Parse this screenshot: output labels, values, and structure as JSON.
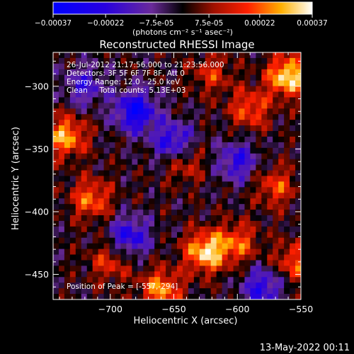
{
  "colorbar": {
    "ticks": [
      "-0.00037",
      "-0.00022",
      "-7.5e-05",
      "7.5e-05",
      "0.00022",
      "0.00037"
    ],
    "units": "(photons cm⁻² s⁻¹ asec⁻²)",
    "range": [
      -0.00037,
      0.00037
    ]
  },
  "chart_data": {
    "type": "heatmap",
    "title": "Reconstructed RHESSI Image",
    "xlabel": "Heliocentric X (arcsec)",
    "ylabel": "Heliocentric Y (arcsec)",
    "xlim": [
      -745,
      -550
    ],
    "ylim": [
      -470,
      -273
    ],
    "x_ticks": [
      -700,
      -650,
      -600,
      -550
    ],
    "x_tick_labels": [
      "−700",
      "−650",
      "−600",
      "−550"
    ],
    "y_ticks": [
      -300,
      -350,
      -400,
      -450
    ],
    "y_tick_labels": [
      "−300",
      "−350",
      "−400",
      "−450"
    ],
    "annotations": [
      "26-Jul-2012 21:17:56.000 to 21:23:56.000",
      "Detectors: 3F 5F 6F 7F 8F, Att 0",
      "Energy Range: 12.0 - 25.0 keV",
      "Clean     Total counts: 5.13E+03"
    ],
    "peak_label": "Position of Peak = [-557,-294]",
    "peak": [
      -557,
      -294
    ],
    "hotspots": [
      {
        "x": -560,
        "y": -292,
        "v": 0.95
      },
      {
        "x": -590,
        "y": -318,
        "v": 0.55
      },
      {
        "x": -735,
        "y": -340,
        "v": 0.75
      },
      {
        "x": -715,
        "y": -390,
        "v": 0.6
      },
      {
        "x": -625,
        "y": -432,
        "v": 0.9
      },
      {
        "x": -600,
        "y": -425,
        "v": 0.55
      },
      {
        "x": -660,
        "y": -462,
        "v": 0.7
      },
      {
        "x": -642,
        "y": -360,
        "v": 0.45
      },
      {
        "x": -570,
        "y": -380,
        "v": 0.5
      },
      {
        "x": -555,
        "y": -440,
        "v": 0.55
      },
      {
        "x": -700,
        "y": -440,
        "v": 0.45
      },
      {
        "x": -620,
        "y": -290,
        "v": 0.4
      }
    ],
    "coldspots": [
      {
        "x": -680,
        "y": -320,
        "v": -0.9
      },
      {
        "x": -650,
        "y": -345,
        "v": -0.75
      },
      {
        "x": -600,
        "y": -360,
        "v": -0.6
      },
      {
        "x": -685,
        "y": -420,
        "v": -0.7
      },
      {
        "x": -580,
        "y": -460,
        "v": -0.65
      },
      {
        "x": -720,
        "y": -300,
        "v": -0.5
      }
    ]
  },
  "footer": {
    "timestamp": "13-May-2022 00:11"
  }
}
